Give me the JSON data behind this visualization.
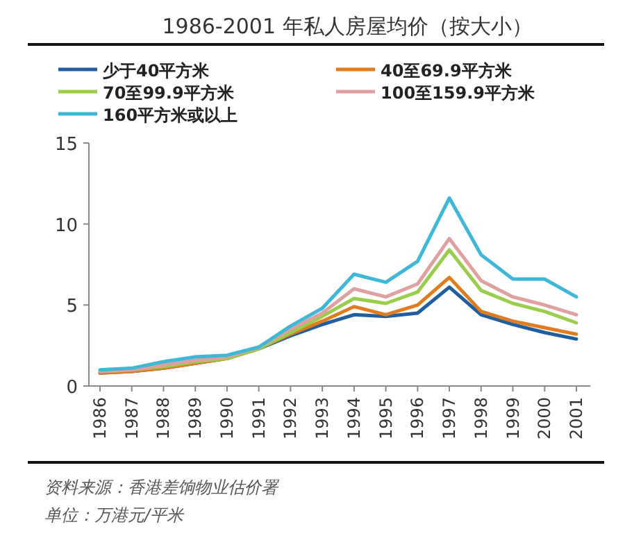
{
  "chart_data": {
    "type": "line",
    "title": "1986-2001 年私人房屋均价（按大小）",
    "categories": [
      "1986",
      "1987",
      "1988",
      "1989",
      "1990",
      "1991",
      "1992",
      "1993",
      "1994",
      "1995",
      "1996",
      "1997",
      "1998",
      "1999",
      "2000",
      "2001"
    ],
    "series": [
      {
        "name": "少于40平方米",
        "color": "#1f5fa0",
        "values": [
          0.8,
          0.9,
          1.1,
          1.4,
          1.7,
          2.3,
          3.1,
          3.8,
          4.4,
          4.3,
          4.5,
          6.1,
          4.4,
          3.8,
          3.3,
          2.9
        ]
      },
      {
        "name": "40至69.9平方米",
        "color": "#e07b20",
        "values": [
          0.8,
          0.9,
          1.1,
          1.4,
          1.7,
          2.3,
          3.2,
          4.0,
          4.9,
          4.4,
          5.0,
          6.7,
          4.6,
          4.0,
          3.6,
          3.2
        ]
      },
      {
        "name": "70至99.9平方米",
        "color": "#9acd4c",
        "values": [
          0.9,
          1.0,
          1.2,
          1.5,
          1.7,
          2.3,
          3.3,
          4.3,
          5.4,
          5.1,
          5.8,
          8.4,
          5.9,
          5.1,
          4.6,
          3.9
        ]
      },
      {
        "name": "100至159.9平方米",
        "color": "#e0a0a0",
        "values": [
          0.9,
          1.0,
          1.3,
          1.6,
          1.8,
          2.4,
          3.5,
          4.5,
          6.0,
          5.5,
          6.3,
          9.1,
          6.5,
          5.5,
          5.0,
          4.4
        ]
      },
      {
        "name": "160平方米或以上",
        "color": "#3fb8d8",
        "values": [
          1.0,
          1.1,
          1.5,
          1.8,
          1.9,
          2.4,
          3.7,
          4.8,
          6.9,
          6.4,
          7.7,
          11.6,
          8.1,
          6.6,
          6.6,
          5.5
        ]
      }
    ],
    "ylim": [
      0,
      15
    ],
    "yticks": [
      0,
      5,
      10,
      15
    ],
    "legend": "top",
    "grid": false,
    "marker": "none",
    "line_style": "solid",
    "annotations": [
      "资料来源：香港差饷物业估价署",
      "单位：万港元/平米"
    ]
  }
}
